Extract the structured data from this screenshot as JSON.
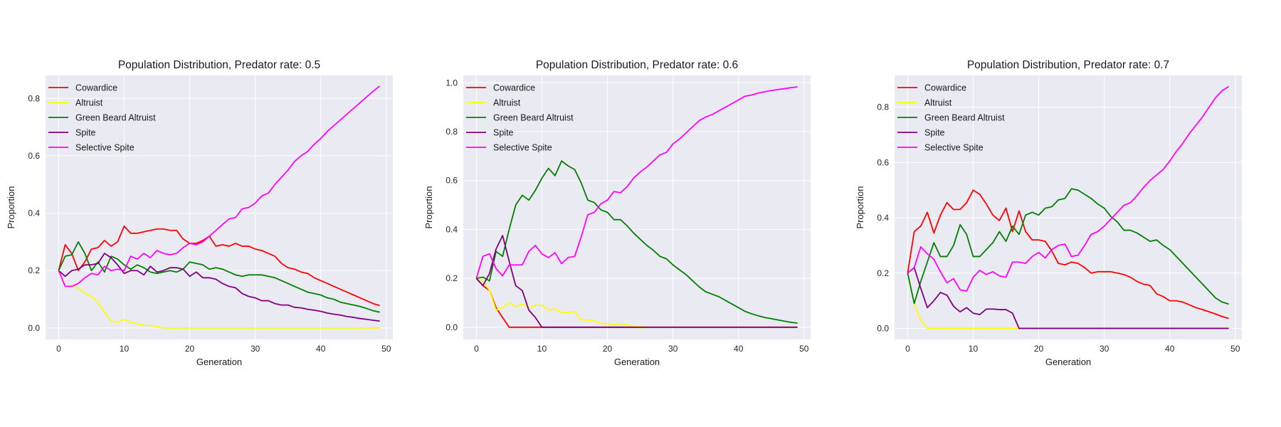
{
  "chart_data": [
    {
      "type": "line",
      "title": "Population Distribution, Predator rate: 0.5",
      "xlabel": "Generation",
      "ylabel": "Proportion",
      "xlim": [
        -2,
        51
      ],
      "ylim": [
        -0.04,
        0.88
      ],
      "xticks": [
        0,
        10,
        20,
        30,
        40,
        50
      ],
      "yticks": [
        0.0,
        0.2,
        0.4,
        0.6,
        0.8
      ],
      "grid": true,
      "legend_position": "upper-left",
      "x": [
        0,
        1,
        2,
        3,
        4,
        5,
        6,
        7,
        8,
        9,
        10,
        11,
        12,
        13,
        14,
        15,
        16,
        17,
        18,
        19,
        20,
        21,
        22,
        23,
        24,
        25,
        26,
        27,
        28,
        29,
        30,
        31,
        32,
        33,
        34,
        35,
        36,
        37,
        38,
        39,
        40,
        41,
        42,
        43,
        44,
        45,
        46,
        47,
        48,
        49
      ],
      "series": [
        {
          "name": "Cowardice",
          "color": "#ff0000",
          "values": [
            0.2,
            0.29,
            0.26,
            0.2,
            0.23,
            0.275,
            0.28,
            0.305,
            0.285,
            0.3,
            0.355,
            0.33,
            0.33,
            0.335,
            0.34,
            0.345,
            0.345,
            0.34,
            0.34,
            0.31,
            0.295,
            0.295,
            0.305,
            0.32,
            0.285,
            0.29,
            0.285,
            0.295,
            0.285,
            0.285,
            0.275,
            0.27,
            0.26,
            0.25,
            0.225,
            0.21,
            0.205,
            0.195,
            0.19,
            0.175,
            0.165,
            0.155,
            0.145,
            0.135,
            0.125,
            0.115,
            0.105,
            0.095,
            0.085,
            0.078
          ]
        },
        {
          "name": "Altruist",
          "color": "#ffff00",
          "values": [
            0.2,
            0.145,
            0.145,
            0.14,
            0.12,
            0.11,
            0.09,
            0.055,
            0.025,
            0.02,
            0.03,
            0.02,
            0.015,
            0.01,
            0.008,
            0.005,
            0.0,
            0.0,
            0.0,
            0.0,
            0.0,
            0.0,
            0.0,
            0.0,
            0.0,
            0.0,
            0.0,
            0.0,
            0.0,
            0.0,
            0.0,
            0.0,
            0.0,
            0.0,
            0.0,
            0.0,
            0.0,
            0.0,
            0.0,
            0.0,
            0.0,
            0.0,
            0.0,
            0.0,
            0.0,
            0.0,
            0.0,
            0.0,
            0.0,
            0.0
          ]
        },
        {
          "name": "Green Beard Altruist",
          "color": "#008000",
          "values": [
            0.2,
            0.25,
            0.255,
            0.3,
            0.26,
            0.2,
            0.23,
            0.195,
            0.25,
            0.24,
            0.22,
            0.205,
            0.22,
            0.21,
            0.195,
            0.19,
            0.195,
            0.2,
            0.195,
            0.205,
            0.23,
            0.225,
            0.22,
            0.205,
            0.21,
            0.205,
            0.195,
            0.185,
            0.18,
            0.185,
            0.185,
            0.185,
            0.18,
            0.175,
            0.165,
            0.155,
            0.145,
            0.135,
            0.125,
            0.12,
            0.115,
            0.105,
            0.1,
            0.09,
            0.085,
            0.08,
            0.075,
            0.068,
            0.06,
            0.055
          ]
        },
        {
          "name": "Spite",
          "color": "#800080",
          "values": [
            0.2,
            0.18,
            0.2,
            0.205,
            0.22,
            0.22,
            0.225,
            0.26,
            0.245,
            0.22,
            0.19,
            0.2,
            0.2,
            0.185,
            0.215,
            0.195,
            0.2,
            0.21,
            0.21,
            0.205,
            0.18,
            0.195,
            0.175,
            0.175,
            0.17,
            0.155,
            0.145,
            0.14,
            0.12,
            0.11,
            0.105,
            0.095,
            0.095,
            0.085,
            0.08,
            0.08,
            0.072,
            0.07,
            0.065,
            0.062,
            0.058,
            0.052,
            0.048,
            0.045,
            0.04,
            0.037,
            0.033,
            0.03,
            0.027,
            0.024
          ]
        },
        {
          "name": "Selective Spite",
          "color": "#ff00ff",
          "values": [
            0.2,
            0.145,
            0.145,
            0.155,
            0.175,
            0.19,
            0.185,
            0.215,
            0.2,
            0.205,
            0.2,
            0.25,
            0.24,
            0.26,
            0.245,
            0.27,
            0.26,
            0.255,
            0.26,
            0.28,
            0.295,
            0.29,
            0.3,
            0.32,
            0.34,
            0.36,
            0.38,
            0.385,
            0.415,
            0.42,
            0.435,
            0.46,
            0.47,
            0.5,
            0.525,
            0.55,
            0.58,
            0.6,
            0.615,
            0.64,
            0.66,
            0.685,
            0.705,
            0.725,
            0.745,
            0.765,
            0.785,
            0.805,
            0.825,
            0.843
          ]
        }
      ]
    },
    {
      "type": "line",
      "title": "Population Distribution, Predator rate: 0.6",
      "xlabel": "Generation",
      "ylabel": "Proportion",
      "xlim": [
        -2,
        51
      ],
      "ylim": [
        -0.05,
        1.03
      ],
      "xticks": [
        0,
        10,
        20,
        30,
        40,
        50
      ],
      "yticks": [
        0.0,
        0.2,
        0.4,
        0.6,
        0.8,
        1.0
      ],
      "grid": true,
      "legend_position": "upper-left",
      "x": [
        0,
        1,
        2,
        3,
        4,
        5,
        6,
        7,
        8,
        9,
        10,
        11,
        12,
        13,
        14,
        15,
        16,
        17,
        18,
        19,
        20,
        21,
        22,
        23,
        24,
        25,
        26,
        27,
        28,
        29,
        30,
        31,
        32,
        33,
        34,
        35,
        36,
        37,
        38,
        39,
        40,
        41,
        42,
        43,
        44,
        45,
        46,
        47,
        48,
        49
      ],
      "series": [
        {
          "name": "Cowardice",
          "color": "#ff0000",
          "values": [
            0.2,
            0.17,
            0.15,
            0.08,
            0.04,
            0.0,
            0.0,
            0.0,
            0.0,
            0.0,
            0.0,
            0.0,
            0.0,
            0.0,
            0.0,
            0.0,
            0.0,
            0.0,
            0.0,
            0.0,
            0.0,
            0.0,
            0.0,
            0.0,
            0.0,
            0.0,
            0.0,
            0.0,
            0.0,
            0.0,
            0.0,
            0.0,
            0.0,
            0.0,
            0.0,
            0.0,
            0.0,
            0.0,
            0.0,
            0.0,
            0.0,
            0.0,
            0.0,
            0.0,
            0.0,
            0.0,
            0.0,
            0.0,
            0.0,
            0.0
          ]
        },
        {
          "name": "Altruist",
          "color": "#ffff00",
          "values": [
            0.2,
            0.19,
            0.15,
            0.07,
            0.08,
            0.1,
            0.085,
            0.095,
            0.08,
            0.09,
            0.09,
            0.07,
            0.075,
            0.06,
            0.06,
            0.065,
            0.03,
            0.03,
            0.025,
            0.015,
            0.015,
            0.01,
            0.015,
            0.01,
            0.005,
            0.003,
            0.0,
            0.0,
            0.0,
            0.0,
            0.0,
            0.0,
            0.0,
            0.0,
            0.0,
            0.0,
            0.0,
            0.0,
            0.0,
            0.0,
            0.0,
            0.0,
            0.0,
            0.0,
            0.0,
            0.0,
            0.0,
            0.0,
            0.0,
            0.0
          ]
        },
        {
          "name": "Green Beard Altruist",
          "color": "#008000",
          "values": [
            0.2,
            0.205,
            0.19,
            0.31,
            0.29,
            0.4,
            0.5,
            0.54,
            0.52,
            0.56,
            0.61,
            0.65,
            0.62,
            0.68,
            0.66,
            0.645,
            0.59,
            0.52,
            0.51,
            0.48,
            0.47,
            0.44,
            0.44,
            0.415,
            0.385,
            0.36,
            0.335,
            0.315,
            0.29,
            0.28,
            0.255,
            0.235,
            0.215,
            0.19,
            0.165,
            0.145,
            0.135,
            0.125,
            0.11,
            0.095,
            0.08,
            0.065,
            0.055,
            0.047,
            0.04,
            0.035,
            0.03,
            0.025,
            0.02,
            0.017
          ]
        },
        {
          "name": "Spite",
          "color": "#800080",
          "values": [
            0.2,
            0.17,
            0.22,
            0.32,
            0.375,
            0.27,
            0.17,
            0.15,
            0.07,
            0.04,
            0.0,
            0.0,
            0.0,
            0.0,
            0.0,
            0.0,
            0.0,
            0.0,
            0.0,
            0.0,
            0.0,
            0.0,
            0.0,
            0.0,
            0.0,
            0.0,
            0.0,
            0.0,
            0.0,
            0.0,
            0.0,
            0.0,
            0.0,
            0.0,
            0.0,
            0.0,
            0.0,
            0.0,
            0.0,
            0.0,
            0.0,
            0.0,
            0.0,
            0.0,
            0.0,
            0.0,
            0.0,
            0.0,
            0.0,
            0.0
          ]
        },
        {
          "name": "Selective Spite",
          "color": "#ff00ff",
          "values": [
            0.2,
            0.29,
            0.3,
            0.24,
            0.21,
            0.255,
            0.255,
            0.255,
            0.31,
            0.335,
            0.3,
            0.285,
            0.305,
            0.26,
            0.285,
            0.29,
            0.37,
            0.46,
            0.47,
            0.505,
            0.52,
            0.555,
            0.55,
            0.575,
            0.61,
            0.635,
            0.655,
            0.68,
            0.705,
            0.715,
            0.75,
            0.77,
            0.795,
            0.82,
            0.845,
            0.86,
            0.87,
            0.885,
            0.9,
            0.915,
            0.93,
            0.945,
            0.95,
            0.958,
            0.963,
            0.968,
            0.972,
            0.976,
            0.98,
            0.983
          ]
        }
      ]
    },
    {
      "type": "line",
      "title": "Population Distribution, Predator rate: 0.7",
      "xlabel": "Generation",
      "ylabel": "Proportion",
      "xlim": [
        -2,
        51
      ],
      "ylim": [
        -0.04,
        0.915
      ],
      "xticks": [
        0,
        10,
        20,
        30,
        40,
        50
      ],
      "yticks": [
        0.0,
        0.2,
        0.4,
        0.6,
        0.8
      ],
      "grid": true,
      "legend_position": "upper-left",
      "x": [
        0,
        1,
        2,
        3,
        4,
        5,
        6,
        7,
        8,
        9,
        10,
        11,
        12,
        13,
        14,
        15,
        16,
        17,
        18,
        19,
        20,
        21,
        22,
        23,
        24,
        25,
        26,
        27,
        28,
        29,
        30,
        31,
        32,
        33,
        34,
        35,
        36,
        37,
        38,
        39,
        40,
        41,
        42,
        43,
        44,
        45,
        46,
        47,
        48,
        49
      ],
      "series": [
        {
          "name": "Cowardice",
          "color": "#ff0000",
          "values": [
            0.2,
            0.35,
            0.37,
            0.42,
            0.345,
            0.41,
            0.455,
            0.43,
            0.43,
            0.455,
            0.5,
            0.485,
            0.45,
            0.41,
            0.39,
            0.435,
            0.35,
            0.425,
            0.35,
            0.32,
            0.32,
            0.315,
            0.28,
            0.235,
            0.23,
            0.24,
            0.235,
            0.22,
            0.2,
            0.205,
            0.205,
            0.205,
            0.2,
            0.195,
            0.185,
            0.17,
            0.16,
            0.155,
            0.125,
            0.115,
            0.1,
            0.1,
            0.095,
            0.085,
            0.075,
            0.068,
            0.06,
            0.052,
            0.043,
            0.036
          ]
        },
        {
          "name": "Altruist",
          "color": "#ffff00",
          "values": [
            0.2,
            0.09,
            0.03,
            0.0,
            0.0,
            0.0,
            0.0,
            0.0,
            0.0,
            0.0,
            0.0,
            0.0,
            0.0,
            0.0,
            0.0,
            0.0,
            0.0,
            0.0,
            0.0,
            0.0,
            0.0,
            0.0,
            0.0,
            0.0,
            0.0,
            0.0,
            0.0,
            0.0,
            0.0,
            0.0,
            0.0,
            0.0,
            0.0,
            0.0,
            0.0,
            0.0,
            0.0,
            0.0,
            0.0,
            0.0,
            0.0,
            0.0,
            0.0,
            0.0,
            0.0,
            0.0,
            0.0,
            0.0,
            0.0,
            0.0
          ]
        },
        {
          "name": "Green Beard Altruist",
          "color": "#008000",
          "values": [
            0.2,
            0.09,
            0.17,
            0.24,
            0.31,
            0.26,
            0.26,
            0.3,
            0.375,
            0.34,
            0.26,
            0.26,
            0.285,
            0.31,
            0.35,
            0.315,
            0.37,
            0.34,
            0.41,
            0.42,
            0.41,
            0.435,
            0.44,
            0.465,
            0.47,
            0.505,
            0.5,
            0.485,
            0.47,
            0.45,
            0.435,
            0.405,
            0.385,
            0.355,
            0.355,
            0.345,
            0.33,
            0.315,
            0.32,
            0.3,
            0.285,
            0.26,
            0.235,
            0.21,
            0.185,
            0.16,
            0.135,
            0.11,
            0.095,
            0.088
          ]
        },
        {
          "name": "Spite",
          "color": "#800080",
          "values": [
            0.2,
            0.22,
            0.145,
            0.075,
            0.1,
            0.13,
            0.12,
            0.08,
            0.06,
            0.075,
            0.055,
            0.05,
            0.07,
            0.07,
            0.068,
            0.068,
            0.055,
            0.0,
            0.0,
            0.0,
            0.0,
            0.0,
            0.0,
            0.0,
            0.0,
            0.0,
            0.0,
            0.0,
            0.0,
            0.0,
            0.0,
            0.0,
            0.0,
            0.0,
            0.0,
            0.0,
            0.0,
            0.0,
            0.0,
            0.0,
            0.0,
            0.0,
            0.0,
            0.0,
            0.0,
            0.0,
            0.0,
            0.0,
            0.0,
            0.0
          ]
        },
        {
          "name": "Selective Spite",
          "color": "#ff00ff",
          "values": [
            0.2,
            0.22,
            0.295,
            0.27,
            0.25,
            0.205,
            0.165,
            0.18,
            0.14,
            0.135,
            0.185,
            0.21,
            0.195,
            0.205,
            0.19,
            0.185,
            0.24,
            0.24,
            0.235,
            0.26,
            0.275,
            0.255,
            0.285,
            0.3,
            0.305,
            0.26,
            0.265,
            0.3,
            0.34,
            0.35,
            0.37,
            0.395,
            0.42,
            0.445,
            0.455,
            0.48,
            0.51,
            0.535,
            0.555,
            0.575,
            0.605,
            0.64,
            0.67,
            0.705,
            0.735,
            0.765,
            0.8,
            0.835,
            0.86,
            0.875
          ]
        }
      ]
    }
  ]
}
